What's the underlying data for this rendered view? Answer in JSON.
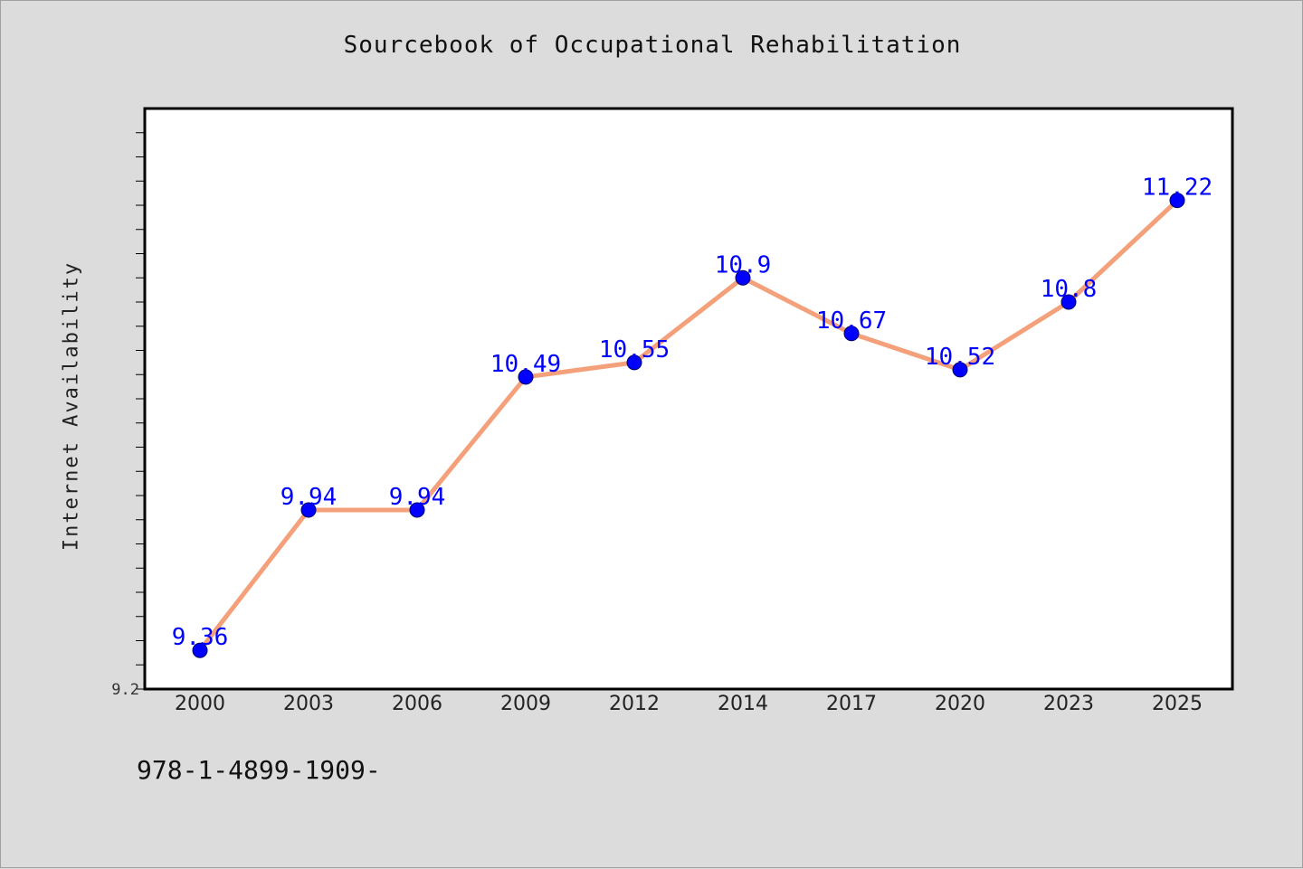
{
  "chart_data": {
    "type": "line",
    "title": "Sourcebook of Occupational Rehabilitation",
    "xlabel": "",
    "ylabel": "Internet Availability",
    "categories": [
      "2000",
      "2003",
      "2006",
      "2009",
      "2012",
      "2014",
      "2017",
      "2020",
      "2023",
      "2025"
    ],
    "series": [
      {
        "values": [
          9.36,
          9.94,
          9.94,
          10.49,
          10.55,
          10.9,
          10.67,
          10.52,
          10.8,
          11.22
        ],
        "data_labels": [
          "9.36",
          "9.94",
          "9.94",
          "10.49",
          "10.55",
          "10.9",
          "10.67",
          "10.52",
          "10.8",
          "11.22"
        ],
        "line_color": "#f4a07a",
        "marker_color": "#0000ff"
      }
    ],
    "ylim": [
      9.2,
      11.6
    ],
    "y_tick_labels": [
      "9.2"
    ],
    "grid": false,
    "legend": "none"
  },
  "footer": {
    "isbn": "978-1-4899-1909-"
  },
  "colors": {
    "background": "#dcdcdc",
    "plot_background": "#ffffff",
    "line": "#f4a07a",
    "marker": "#0000ff",
    "data_label": "#0000ff"
  }
}
